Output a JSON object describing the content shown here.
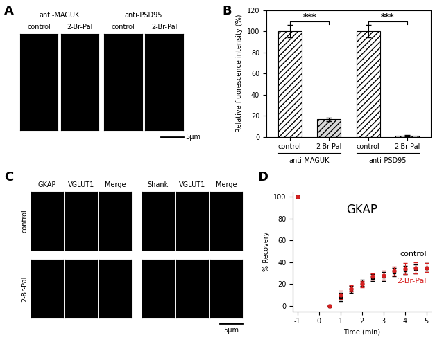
{
  "panel_labels": [
    "A",
    "B",
    "C",
    "D"
  ],
  "panel_A": {
    "groups": [
      "anti-MAGUK",
      "anti-PSD95"
    ],
    "conditions": [
      "control",
      "2-Br-Pal"
    ],
    "scale_bar": "5μm"
  },
  "panel_C": {
    "triplets": [
      [
        "GKAP",
        "VGLUT1",
        "Merge"
      ],
      [
        "Shank",
        "VGLUT1",
        "Merge"
      ]
    ],
    "rows": [
      "control",
      "2-Br-Pal"
    ],
    "scale_bar": "5μm"
  },
  "chart_data": [
    {
      "type": "bar",
      "y_label": "Relative fluorescence intensity (%)",
      "categories": [
        "control",
        "2-Br-Pal",
        "control",
        "2-Br-Pal"
      ],
      "groups": [
        "anti-MAGUK",
        "anti-PSD95"
      ],
      "values": [
        100,
        16.5,
        100,
        1
      ],
      "errors": [
        6,
        1.5,
        6,
        0.8
      ],
      "colors": [
        "#ffffff",
        "#d9d9d9",
        "#ffffff",
        "#d9d9d9"
      ],
      "annotations": [
        "***",
        "***"
      ],
      "ylim": [
        0,
        120
      ],
      "yticks": [
        0,
        20,
        40,
        60,
        80,
        100,
        120
      ]
    },
    {
      "type": "scatter",
      "title": "GKAP",
      "x_label": "Time (min)",
      "y_label": "% Recovery",
      "x": [
        -1,
        0.5,
        1,
        1.5,
        2,
        2.5,
        3,
        3.5,
        4,
        4.5,
        5
      ],
      "series": [
        {
          "name": "control",
          "color": "#000000",
          "marker": "square",
          "values": [
            100,
            0,
            8,
            15,
            21,
            26,
            27,
            31,
            33,
            34,
            35
          ],
          "errors": [
            0,
            0,
            4,
            3,
            3,
            3,
            4,
            4,
            4,
            4,
            4
          ]
        },
        {
          "name": "2-Br-Pal",
          "color": "#d62020",
          "marker": "circle",
          "values": [
            100,
            0,
            10,
            16,
            20,
            27,
            28,
            32,
            34,
            35,
            35
          ],
          "errors": [
            0,
            0,
            4,
            3,
            3,
            3,
            4,
            4,
            5,
            5,
            4
          ]
        }
      ],
      "xlim": [
        -1.2,
        5.2
      ],
      "ylim": [
        -5,
        105
      ],
      "xticks": [
        -1,
        0,
        1,
        2,
        3,
        4,
        5
      ],
      "yticks": [
        0,
        20,
        40,
        60,
        80,
        100
      ]
    }
  ]
}
